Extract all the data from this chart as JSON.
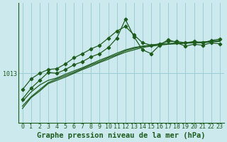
{
  "title": "Graphe pression niveau de la mer (hPa)",
  "bg_color": "#cce9ed",
  "line_color": "#1e5c1e",
  "grid_color": "#9ecdd4",
  "hours": [
    0,
    1,
    2,
    3,
    4,
    5,
    6,
    7,
    8,
    9,
    10,
    11,
    12,
    13,
    14,
    15,
    16,
    17,
    18,
    19,
    20,
    21,
    22,
    23
  ],
  "series_with_markers": [
    [
      1007.5,
      1009.8,
      1011.5,
      1013.2,
      1013.0,
      1013.8,
      1014.8,
      1015.5,
      1016.5,
      1017.2,
      1018.5,
      1020.5,
      1024.5,
      1020.8,
      1018.0,
      1017.2,
      1019.0,
      1020.2,
      1019.5,
      1018.8,
      1019.2,
      1019.0,
      1019.5,
      1019.3
    ],
    [
      1009.5,
      1011.8,
      1013.0,
      1013.8,
      1014.0,
      1015.0,
      1016.3,
      1017.2,
      1018.2,
      1019.0,
      1020.5,
      1022.0,
      1023.0,
      1021.2,
      1019.5,
      1019.0,
      1019.3,
      1019.8,
      1019.8,
      1019.5,
      1019.8,
      1019.5,
      1020.0,
      1020.3
    ]
  ],
  "series_no_markers": [
    [
      1007.0,
      1009.0,
      1010.5,
      1011.5,
      1012.0,
      1012.8,
      1013.5,
      1014.2,
      1015.0,
      1015.8,
      1016.5,
      1017.3,
      1018.0,
      1018.5,
      1018.8,
      1019.0,
      1019.2,
      1019.3,
      1019.5,
      1019.5,
      1019.6,
      1019.7,
      1019.8,
      1020.0
    ],
    [
      1006.0,
      1008.0,
      1009.5,
      1011.0,
      1011.8,
      1012.5,
      1013.2,
      1014.0,
      1014.8,
      1015.5,
      1016.3,
      1017.0,
      1017.8,
      1018.3,
      1018.7,
      1019.0,
      1019.2,
      1019.3,
      1019.4,
      1019.5,
      1019.6,
      1019.6,
      1019.8,
      1019.9
    ],
    [
      1005.5,
      1007.8,
      1009.2,
      1010.8,
      1011.5,
      1012.2,
      1013.0,
      1013.8,
      1014.5,
      1015.3,
      1016.0,
      1016.8,
      1017.5,
      1018.0,
      1018.5,
      1018.8,
      1019.0,
      1019.2,
      1019.3,
      1019.4,
      1019.5,
      1019.5,
      1019.7,
      1019.8
    ]
  ],
  "ylim": [
    1002.5,
    1028.0
  ],
  "ytick": 1013,
  "tick_fs": 6,
  "label_fs": 7.5
}
